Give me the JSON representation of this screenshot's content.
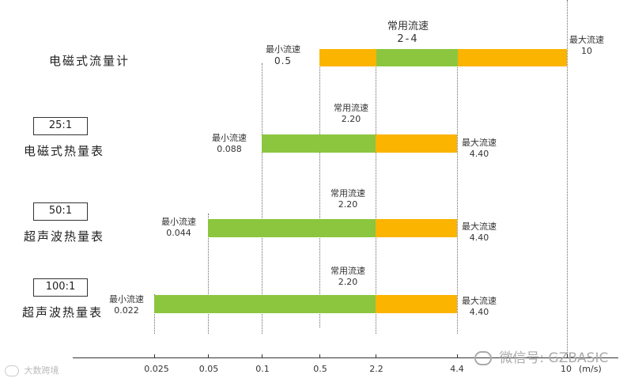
{
  "rows": [
    {
      "label": "电磁式流量计",
      "ratio": "",
      "min_label": "最小流速",
      "min_value": "0.5",
      "common_label": "常用流速",
      "common_value": "2-4",
      "max_label": "最大流速",
      "max_value": "10"
    },
    {
      "label": "电磁式热量表",
      "ratio": "25:1",
      "min_label": "最小流速",
      "min_value": "0.088",
      "common_label": "常用流速",
      "common_value": "2.20",
      "max_label": "最大流速",
      "max_value": "4.40"
    },
    {
      "label": "超声波热量表",
      "ratio": "50:1",
      "min_label": "最小流速",
      "min_value": "0.044",
      "common_label": "常用流速",
      "common_value": "2.20",
      "max_label": "最大流速",
      "max_value": "4.40"
    },
    {
      "label": "超声波热量表",
      "ratio": "100:1",
      "min_label": "最小流速",
      "min_value": "0.022",
      "common_label": "常用流速",
      "common_value": "2.20",
      "max_label": "最大流速",
      "max_value": "4.40"
    }
  ],
  "axis": {
    "ticks": [
      "0.025",
      "0.05",
      "0.1",
      "0.5",
      "2.2",
      "4.4",
      "10"
    ],
    "unit": "(m/s)"
  },
  "colors": {
    "low_range": "#8cc63f",
    "high_range": "#fbb400"
  },
  "watermarks": {
    "left": "大数跨境",
    "right": "微信号: GZBASIC",
    "left_icon": "logo-icon",
    "right_icon": "wechat-icon"
  },
  "chart_data": {
    "type": "bar",
    "orientation": "horizontal",
    "categories": [
      "电磁式流量计",
      "电磁式热量表 25:1",
      "超声波热量表 50:1",
      "超声波热量表 100:1"
    ],
    "series": [
      {
        "min": 0.5,
        "split": 2.0,
        "split2": 4.0,
        "max": 10,
        "segments": [
          "orange",
          "green",
          "orange"
        ]
      },
      {
        "min": 0.088,
        "split": 2.2,
        "max": 4.4,
        "segments": [
          "green",
          "orange"
        ]
      },
      {
        "min": 0.044,
        "split": 2.2,
        "max": 4.4,
        "segments": [
          "green",
          "orange"
        ]
      },
      {
        "min": 0.022,
        "split": 2.2,
        "max": 4.4,
        "segments": [
          "green",
          "orange"
        ]
      }
    ],
    "x_ticks": [
      0.025,
      0.05,
      0.1,
      0.5,
      2.2,
      4.4,
      10
    ],
    "xlabel": "(m/s)",
    "grid": "vertical dotted at ticks"
  }
}
